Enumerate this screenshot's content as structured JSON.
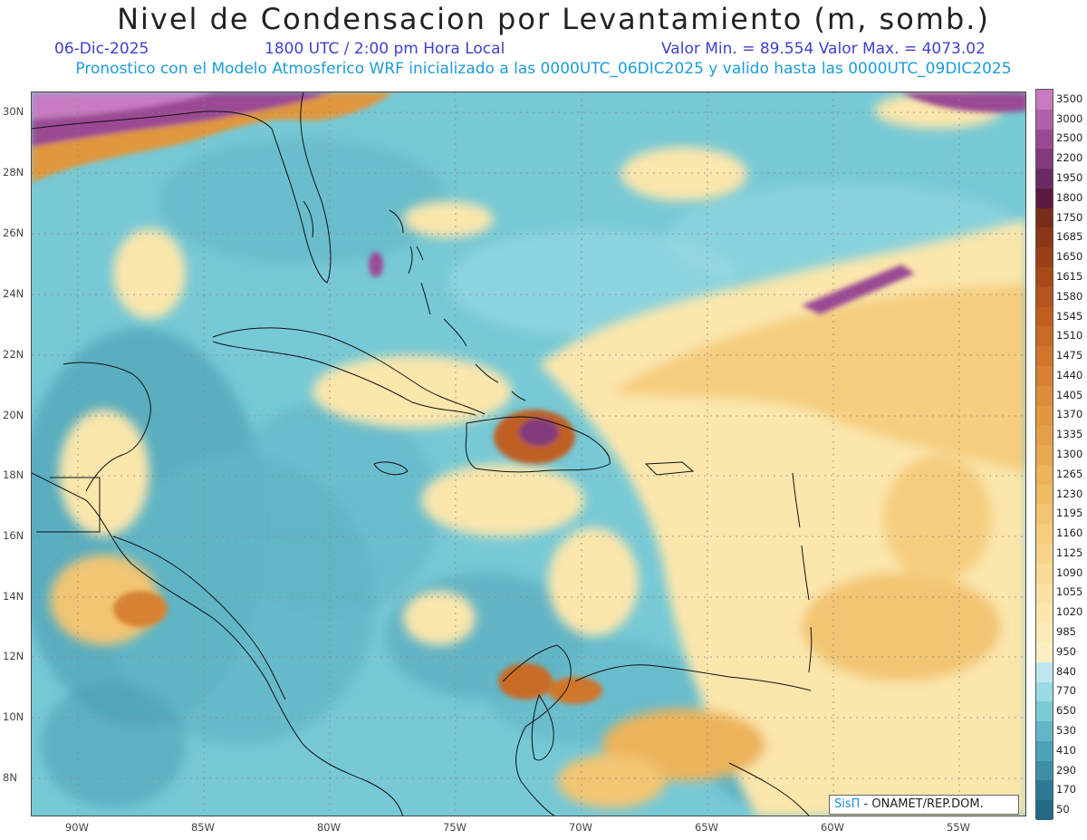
{
  "title": "Nivel de Condensacion por Levantamiento (m, somb.)",
  "subtitle": {
    "date": "06-Dic-2025",
    "time": "1800 UTC / 2:00 pm Hora Local",
    "minmax": "Valor Min. = 89.554   Valor Max. = 4073.02"
  },
  "model_line": "Pronostico con el Modelo Atmosferico WRF inicializado a las 0000UTC_06DIC2025 y valido hasta las  0000UTC_09DIC2025",
  "map": {
    "lon_labels": [
      "90W",
      "85W",
      "80W",
      "75W",
      "70W",
      "65W",
      "60W",
      "55W"
    ],
    "lat_labels": [
      "30N",
      "28N",
      "26N",
      "24N",
      "22N",
      "20N",
      "18N",
      "16N",
      "14N",
      "12N",
      "10N",
      "8N"
    ]
  },
  "colorbar": {
    "labels": [
      "3500",
      "3000",
      "2500",
      "2200",
      "1950",
      "1800",
      "1750",
      "1685",
      "1650",
      "1615",
      "1580",
      "1545",
      "1510",
      "1475",
      "1440",
      "1405",
      "1370",
      "1335",
      "1300",
      "1265",
      "1230",
      "1195",
      "1160",
      "1125",
      "1090",
      "1055",
      "1020",
      "985",
      "950",
      "840",
      "770",
      "650",
      "530",
      "410",
      "290",
      "170",
      "50"
    ],
    "colors": [
      "#c77cc1",
      "#b060a8",
      "#9a4a93",
      "#823a7c",
      "#6a2a62",
      "#5c1a3e",
      "#7a2c1a",
      "#8a3618",
      "#9a4016",
      "#a84a18",
      "#b5541c",
      "#c05e20",
      "#c96a26",
      "#d0762c",
      "#d78232",
      "#dc8d38",
      "#e0973e",
      "#e4a046",
      "#e8aa50",
      "#ecb35a",
      "#efbc66",
      "#f2c572",
      "#f5cd7e",
      "#f7d48a",
      "#f9db96",
      "#fae1a2",
      "#fbe6ac",
      "#fcebb6",
      "#fdf0c0",
      "#bfe8ee",
      "#99dbe4",
      "#7ccad6",
      "#62b6c6",
      "#4ea2b6",
      "#3f8ea4",
      "#2f7a92",
      "#226a82"
    ]
  },
  "credit": {
    "brand": "SisΠ",
    "text": " - ONAMET/REP.DOM."
  }
}
